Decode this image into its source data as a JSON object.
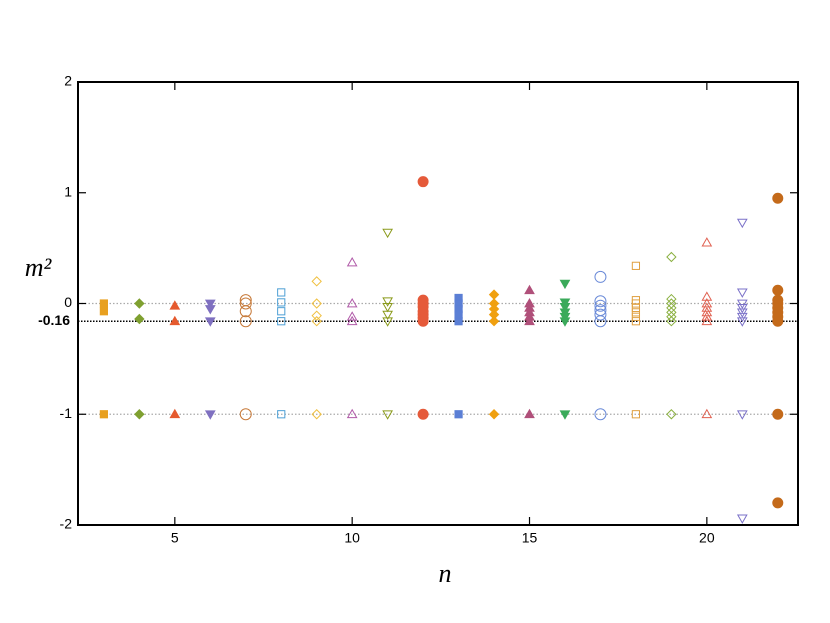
{
  "chart_data": {
    "type": "scatter",
    "xlabel": "n",
    "ylabel": "m²",
    "xlim": [
      2.27,
      22.57
    ],
    "ylim": [
      -2,
      2
    ],
    "xticks": [
      5,
      10,
      15,
      20
    ],
    "yticks": [
      -2,
      -1,
      0,
      1,
      2
    ],
    "gridlines": [
      0,
      -1
    ],
    "reference_line": -0.16,
    "series": [
      {
        "x": 3,
        "marker": "square",
        "filled": true,
        "color": "#e8a020",
        "values": [
          0,
          -0.07,
          -1
        ]
      },
      {
        "x": 4,
        "marker": "diamond",
        "filled": true,
        "color": "#7fa030",
        "values": [
          0,
          -0.14,
          -1
        ]
      },
      {
        "x": 5,
        "marker": "triangle",
        "filled": true,
        "color": "#e55a2e",
        "values": [
          -0.02,
          -0.16,
          -1
        ]
      },
      {
        "x": 6,
        "marker": "down-triangle",
        "filled": true,
        "color": "#7f70c0",
        "values": [
          0,
          -0.05,
          -0.16,
          -1
        ]
      },
      {
        "x": 7,
        "marker": "circle",
        "filled": false,
        "color": "#c77a3a",
        "values": [
          0.03,
          0,
          -0.07,
          -0.16,
          -1
        ]
      },
      {
        "x": 8,
        "marker": "square",
        "filled": false,
        "color": "#4d9fd5",
        "values": [
          0.1,
          0.01,
          -0.07,
          -0.16,
          -1
        ]
      },
      {
        "x": 9,
        "marker": "diamond",
        "filled": false,
        "color": "#f0c040",
        "values": [
          0.2,
          0,
          -0.11,
          -0.16,
          -1
        ]
      },
      {
        "x": 10,
        "marker": "triangle",
        "filled": false,
        "color": "#b05aa8",
        "values": [
          0.37,
          0,
          -0.12,
          -0.16,
          -1
        ]
      },
      {
        "x": 11,
        "marker": "down-triangle",
        "filled": false,
        "color": "#8a9a1a",
        "values": [
          0.64,
          0.02,
          -0.03,
          -0.1,
          -0.16,
          -1
        ]
      },
      {
        "x": 12,
        "marker": "circle",
        "filled": true,
        "color": "#e55a3a",
        "values": [
          1.1,
          0.03,
          0,
          -0.03,
          -0.07,
          -0.1,
          -0.13,
          -0.16,
          -1
        ]
      },
      {
        "x": 13,
        "marker": "square",
        "filled": true,
        "color": "#5b7fd5",
        "values": [
          0.05,
          0,
          -0.05,
          -0.1,
          -0.16,
          -1
        ]
      },
      {
        "x": 14,
        "marker": "diamond",
        "filled": true,
        "color": "#f0a010",
        "values": [
          0.08,
          0,
          -0.05,
          -0.1,
          -0.16,
          -1
        ]
      },
      {
        "x": 15,
        "marker": "triangle",
        "filled": true,
        "color": "#b0507a",
        "values": [
          0.12,
          0,
          -0.04,
          -0.08,
          -0.12,
          -0.16,
          -1
        ]
      },
      {
        "x": 16,
        "marker": "down-triangle",
        "filled": true,
        "color": "#3aaa5a",
        "values": [
          0.18,
          0.01,
          -0.03,
          -0.08,
          -0.12,
          -0.16,
          -1
        ]
      },
      {
        "x": 17,
        "marker": "circle",
        "filled": false,
        "color": "#6a8ad8",
        "values": [
          0.24,
          0.02,
          -0.02,
          -0.06,
          -0.1,
          -0.16,
          -1
        ]
      },
      {
        "x": 18,
        "marker": "square",
        "filled": false,
        "color": "#e0a040",
        "values": [
          0.34,
          0.03,
          0,
          -0.04,
          -0.08,
          -0.12,
          -0.16,
          -1
        ]
      },
      {
        "x": 19,
        "marker": "diamond",
        "filled": false,
        "color": "#8ab040",
        "values": [
          0.42,
          0.04,
          0,
          -0.04,
          -0.08,
          -0.12,
          -0.16,
          -1
        ]
      },
      {
        "x": 20,
        "marker": "triangle",
        "filled": false,
        "color": "#e06050",
        "values": [
          0.55,
          0.06,
          0,
          -0.04,
          -0.08,
          -0.12,
          -0.16,
          -1
        ]
      },
      {
        "x": 21,
        "marker": "down-triangle",
        "filled": false,
        "color": "#7a70c8",
        "values": [
          0.73,
          0.1,
          0,
          -0.04,
          -0.08,
          -0.12,
          -0.16,
          -1,
          -1.94
        ]
      },
      {
        "x": 22,
        "marker": "circle",
        "filled": true,
        "color": "#c46a1a",
        "values": [
          0.95,
          0.12,
          0.03,
          0,
          -0.04,
          -0.08,
          -0.12,
          -0.16,
          -1,
          -1.8
        ]
      }
    ]
  }
}
